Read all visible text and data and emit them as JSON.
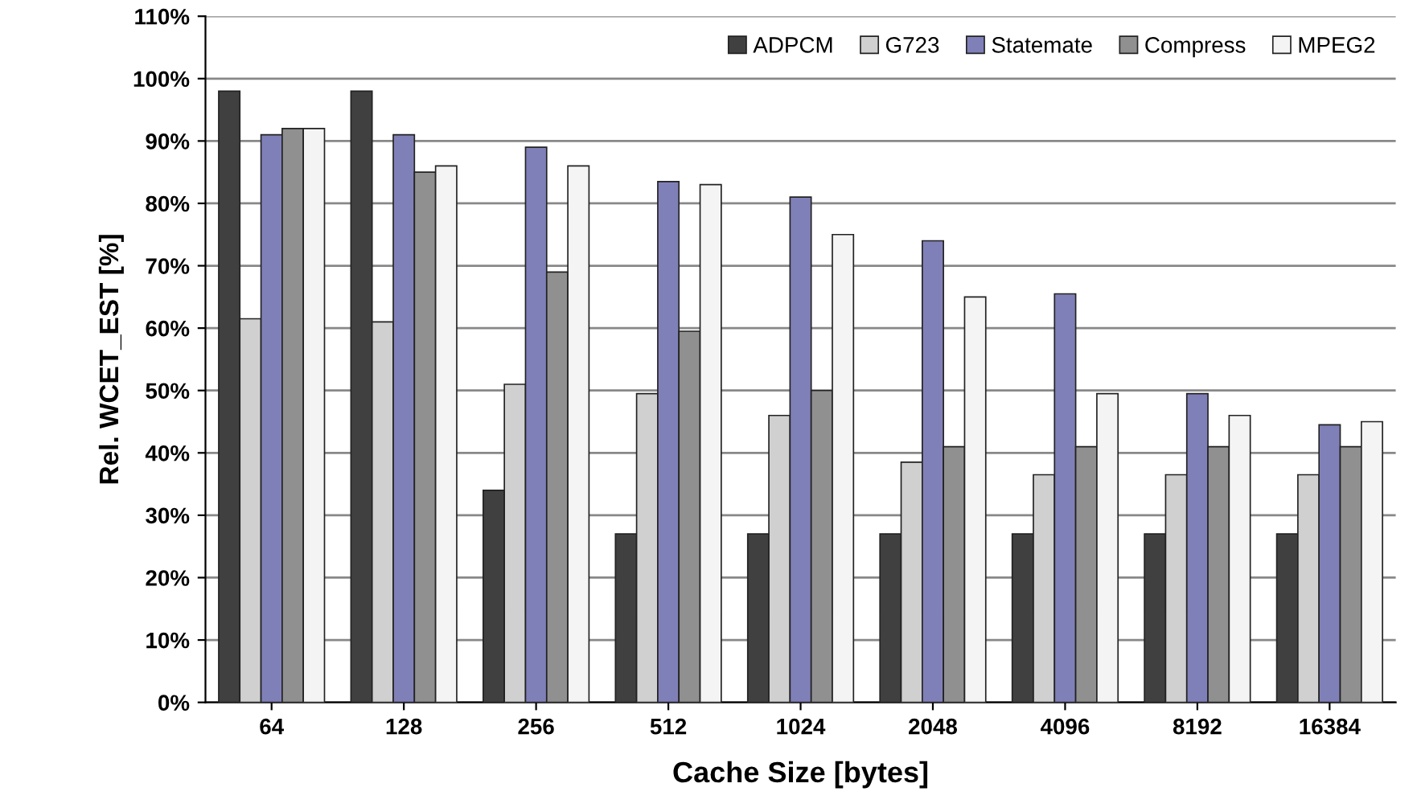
{
  "chart_data": {
    "type": "bar",
    "xlabel": "Cache Size [bytes]",
    "ylabel": "Rel. WCET_EST [%]",
    "categories": [
      "64",
      "128",
      "256",
      "512",
      "1024",
      "2048",
      "4096",
      "8192",
      "16384"
    ],
    "series": [
      {
        "name": "ADPCM",
        "color": "#404040",
        "values": [
          98,
          98,
          34,
          27,
          27,
          27,
          27,
          27,
          27
        ]
      },
      {
        "name": "G723",
        "color": "#d0d0d0",
        "values": [
          61.5,
          61,
          51,
          49.5,
          46,
          38.5,
          36.5,
          36.5,
          36.5
        ]
      },
      {
        "name": "Statemate",
        "color": "#8080b8",
        "values": [
          91,
          91,
          89,
          83.5,
          81,
          74,
          65.5,
          49.5,
          44.5
        ]
      },
      {
        "name": "Compress",
        "color": "#909090",
        "values": [
          92,
          85,
          69,
          59.5,
          50,
          41,
          41,
          41,
          41
        ]
      },
      {
        "name": "MPEG2",
        "color": "#f4f4f4",
        "values": [
          92,
          86,
          86,
          83,
          75,
          65,
          49.5,
          46,
          45
        ]
      }
    ],
    "ylim": [
      0,
      110
    ],
    "yticks": [
      {
        "value": 0,
        "label": "0%"
      },
      {
        "value": 10,
        "label": "10%"
      },
      {
        "value": 20,
        "label": "20%"
      },
      {
        "value": 30,
        "label": "30%"
      },
      {
        "value": 40,
        "label": "40%"
      },
      {
        "value": 50,
        "label": "50%"
      },
      {
        "value": 60,
        "label": "60%"
      },
      {
        "value": 70,
        "label": "70%"
      },
      {
        "value": 80,
        "label": "80%"
      },
      {
        "value": 90,
        "label": "90%"
      },
      {
        "value": 100,
        "label": "100%"
      },
      {
        "value": 110,
        "label": "110%"
      }
    ],
    "grid": "y",
    "legend": "top right"
  }
}
